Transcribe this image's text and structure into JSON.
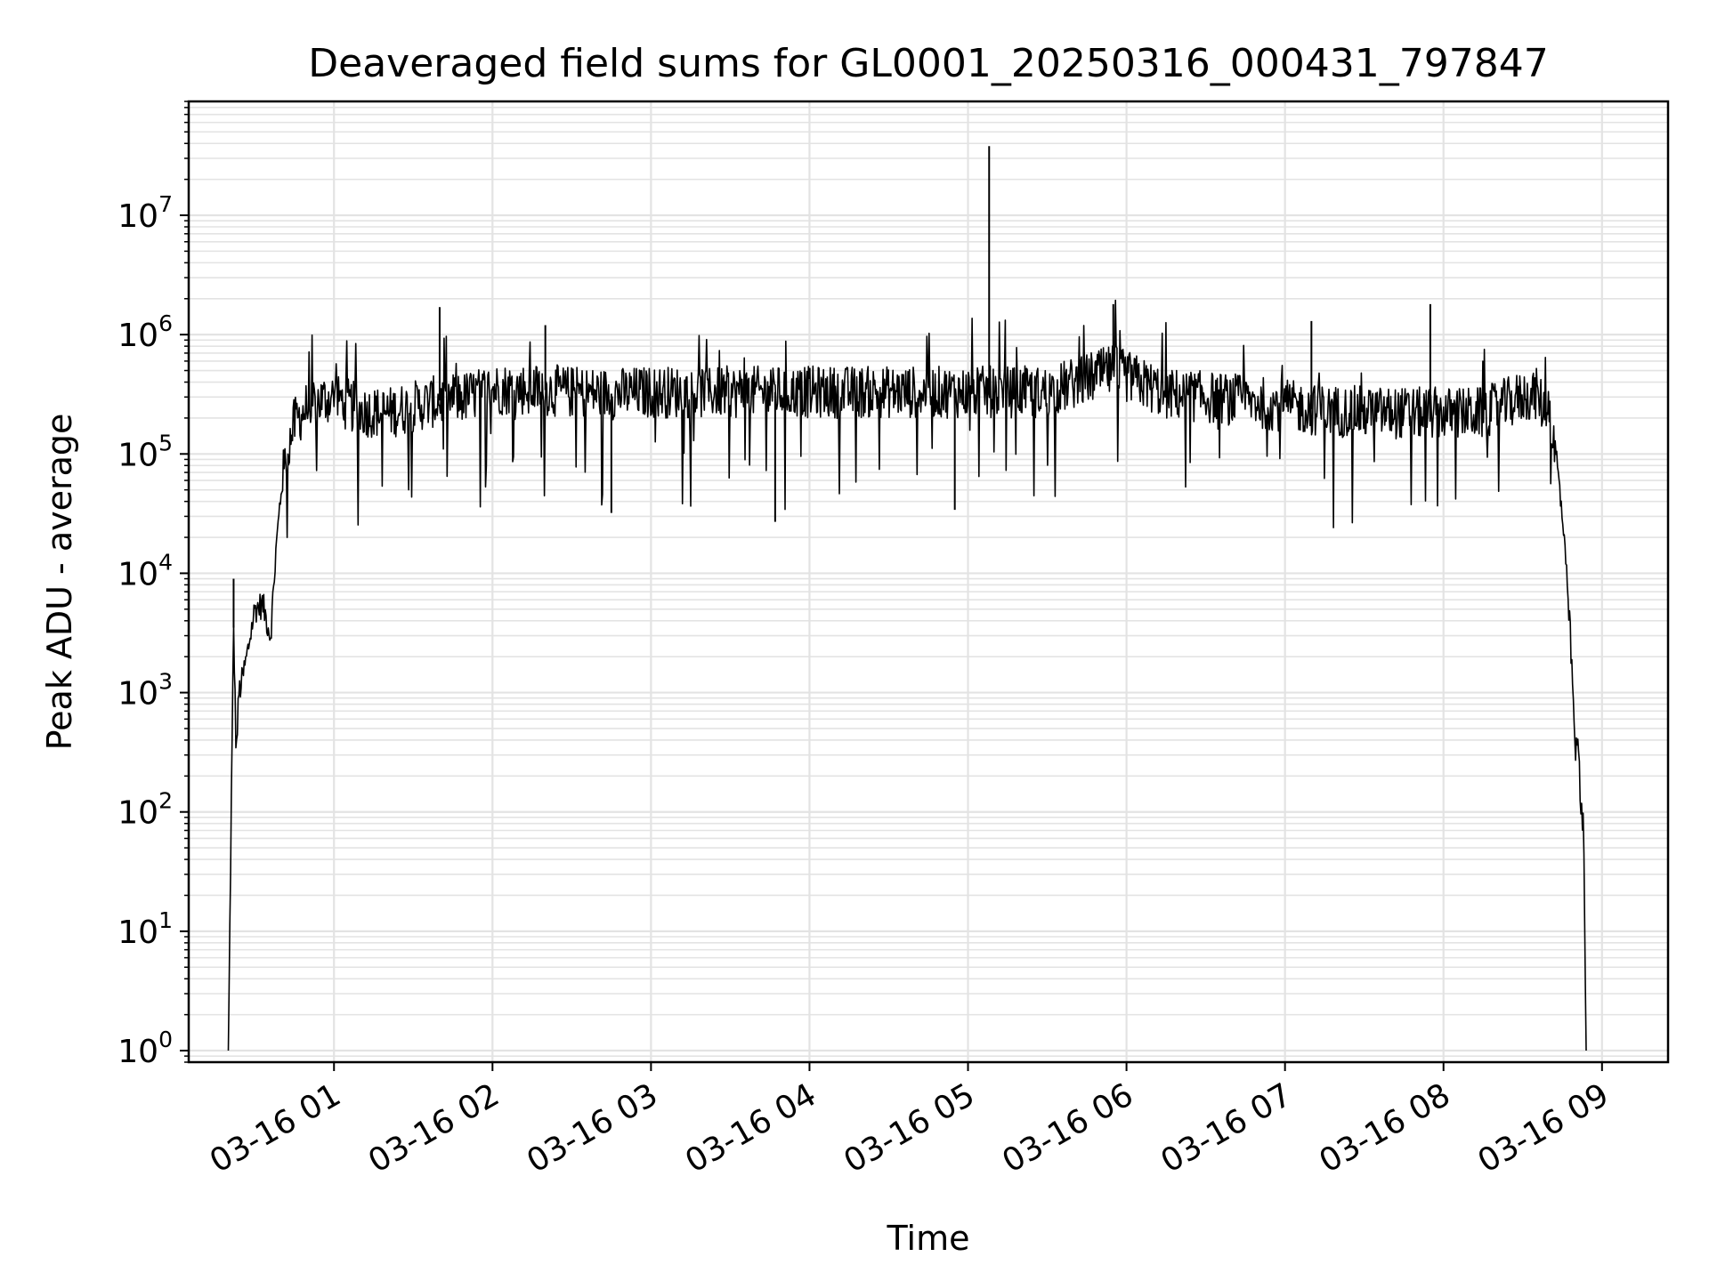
{
  "chart_data": {
    "type": "line",
    "title": "Deaveraged field sums for GL0001_20250316_000431_797847",
    "xlabel": "Time",
    "ylabel": "Peak ADU - average",
    "yscale": "log",
    "grid": true,
    "line_color": "#000000",
    "grid_color": "#e3e3e3",
    "xlim": [
      "2025-03-16 00:05",
      "2025-03-16 09:25"
    ],
    "ylim": [
      0.8,
      90000000
    ],
    "x_ticks": [
      {
        "label": "03-16 01",
        "time": "2025-03-16 01:00"
      },
      {
        "label": "03-16 02",
        "time": "2025-03-16 02:00"
      },
      {
        "label": "03-16 03",
        "time": "2025-03-16 03:00"
      },
      {
        "label": "03-16 04",
        "time": "2025-03-16 04:00"
      },
      {
        "label": "03-16 05",
        "time": "2025-03-16 05:00"
      },
      {
        "label": "03-16 06",
        "time": "2025-03-16 06:00"
      },
      {
        "label": "03-16 07",
        "time": "2025-03-16 07:00"
      },
      {
        "label": "03-16 08",
        "time": "2025-03-16 08:00"
      },
      {
        "label": "03-16 09",
        "time": "2025-03-16 09:00"
      }
    ],
    "y_ticks": [
      {
        "base": "10",
        "exp": "0",
        "value": 1
      },
      {
        "base": "10",
        "exp": "1",
        "value": 10
      },
      {
        "base": "10",
        "exp": "2",
        "value": 100
      },
      {
        "base": "10",
        "exp": "3",
        "value": 1000
      },
      {
        "base": "10",
        "exp": "4",
        "value": 10000
      },
      {
        "base": "10",
        "exp": "5",
        "value": 100000
      },
      {
        "base": "10",
        "exp": "6",
        "value": 1000000
      },
      {
        "base": "10",
        "exp": "7",
        "value": 10000000
      }
    ],
    "series": [
      {
        "time": [
          "2025-03-16 00:20",
          "2025-03-16 00:21",
          "2025-03-16 00:22",
          "2025-03-16 00:23",
          "2025-03-16 00:24",
          "2025-03-16 00:25",
          "2025-03-16 00:27",
          "2025-03-16 00:30",
          "2025-03-16 00:33",
          "2025-03-16 00:36",
          "2025-03-16 00:38",
          "2025-03-16 00:40",
          "2025-03-16 00:42",
          "2025-03-16 00:45",
          "2025-03-16 00:50",
          "2025-03-16 00:55",
          "2025-03-16 01:00",
          "2025-03-16 01:10",
          "2025-03-16 01:20",
          "2025-03-16 01:30",
          "2025-03-16 01:40",
          "2025-03-16 01:50",
          "2025-03-16 02:00",
          "2025-03-16 02:15",
          "2025-03-16 02:30",
          "2025-03-16 02:45",
          "2025-03-16 03:00",
          "2025-03-16 03:30",
          "2025-03-16 04:00",
          "2025-03-16 04:30",
          "2025-03-16 05:00",
          "2025-03-16 05:30",
          "2025-03-16 05:55",
          "2025-03-16 06:15",
          "2025-03-16 06:45",
          "2025-03-16 07:15",
          "2025-03-16 07:45",
          "2025-03-16 08:15",
          "2025-03-16 08:30",
          "2025-03-16 08:35",
          "2025-03-16 08:40",
          "2025-03-16 08:43",
          "2025-03-16 08:45",
          "2025-03-16 08:48",
          "2025-03-16 08:50",
          "2025-03-16 08:51",
          "2025-03-16 08:52",
          "2025-03-16 08:53",
          "2025-03-16 08:54"
        ],
        "values": [
          1,
          70,
          3500,
          300,
          1000,
          1200,
          2000,
          5000,
          5500,
          3000,
          15000,
          50000,
          100000,
          180000,
          250000,
          280000,
          300000,
          230000,
          220000,
          250000,
          280000,
          300000,
          350000,
          350000,
          330000,
          320000,
          330000,
          330000,
          330000,
          330000,
          330000,
          330000,
          500000,
          320000,
          280000,
          230000,
          220000,
          220000,
          300000,
          320000,
          200000,
          80000,
          30000,
          3000,
          300,
          400,
          100,
          80,
          1
        ],
        "spikes": [
          {
            "time": "2025-03-16 00:22",
            "value": 9000
          },
          {
            "time": "2025-03-16 01:40",
            "value": 1700000
          },
          {
            "time": "2025-03-16 02:20",
            "value": 1200000
          },
          {
            "time": "2025-03-16 05:08",
            "value": 38000000
          },
          {
            "time": "2025-03-16 05:55",
            "value": 1800000
          },
          {
            "time": "2025-03-16 07:10",
            "value": 1300000
          },
          {
            "time": "2025-03-16 07:55",
            "value": 1800000
          },
          {
            "time": "2025-03-16 02:45",
            "value": 32000
          },
          {
            "time": "2025-03-16 03:47",
            "value": 27000
          },
          {
            "time": "2025-03-16 04:55",
            "value": 34000
          }
        ]
      }
    ]
  }
}
